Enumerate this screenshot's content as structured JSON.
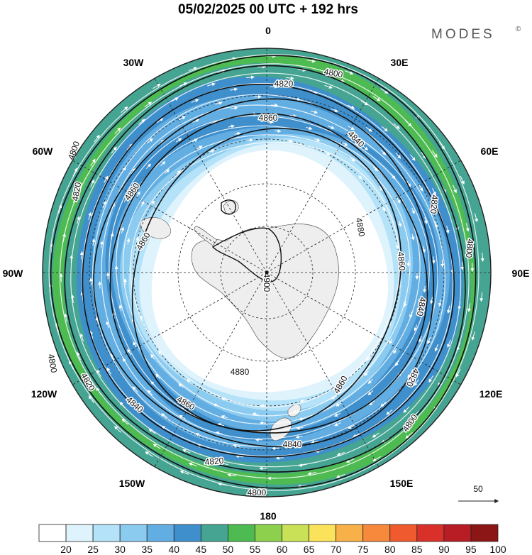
{
  "title": "05/02/2025  00 UTC  + 192 hrs",
  "brand": "MODES",
  "brand_mark": "©",
  "longitude_labels": [
    "0",
    "30E",
    "60E",
    "90E",
    "120E",
    "150E",
    "180",
    "150W",
    "120W",
    "90W",
    "60W",
    "30W"
  ],
  "contour_labels": [
    "4800",
    "4820",
    "4840",
    "4860",
    "4880",
    "4900"
  ],
  "vector_reference": "50",
  "colorbar": {
    "ticks": [
      "20",
      "25",
      "30",
      "35",
      "40",
      "45",
      "50",
      "55",
      "60",
      "65",
      "70",
      "75",
      "80",
      "85",
      "90",
      "95",
      "100"
    ],
    "colors": [
      "#ffffff",
      "#dff3fd",
      "#b4e2f8",
      "#8ccbf0",
      "#62aee2",
      "#3f8fcc",
      "#45a492",
      "#4dbb52",
      "#8dd04d",
      "#c8e156",
      "#fbe25b",
      "#f8b048",
      "#f6893c",
      "#ef5b2e",
      "#d9302a",
      "#b81c24",
      "#8c1515"
    ]
  },
  "chart_data": {
    "type": "polar-stereographic-map",
    "projection": "south-polar-stereographic",
    "field_shading": "wind speed",
    "field_contours": "geopotential height",
    "contour_levels": [
      4800,
      4820,
      4840,
      4860,
      4880,
      4900
    ],
    "shading_levels": [
      20,
      25,
      30,
      35,
      40,
      45,
      50,
      55,
      60,
      65,
      70,
      75,
      80,
      85,
      90,
      95,
      100
    ],
    "graticule_meridians_deg": [
      0,
      30,
      60,
      90,
      120,
      150,
      180,
      210,
      240,
      270,
      300,
      330
    ],
    "graticule_latitudes_deg": [
      -80,
      -70,
      -60,
      -50,
      -40,
      -30
    ],
    "reference_vector": 50
  }
}
